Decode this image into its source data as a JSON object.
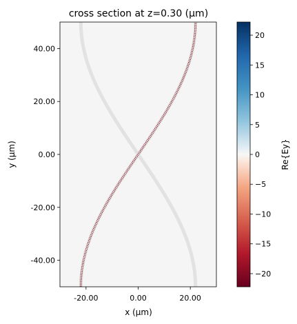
{
  "chart_data": {
    "type": "heatmap",
    "title": "cross section at z=0.30 (μm)",
    "xlabel": "x (μm)",
    "ylabel": "y (μm)",
    "xlim": [
      -30,
      30
    ],
    "ylim": [
      -50,
      50
    ],
    "x_ticks": [
      {
        "value": -20,
        "label": "-20.00"
      },
      {
        "value": 0,
        "label": "0.00"
      },
      {
        "value": 20,
        "label": "20.00"
      }
    ],
    "y_ticks": [
      {
        "value": 40,
        "label": "40.00"
      },
      {
        "value": 20,
        "label": "20.00"
      },
      {
        "value": 0,
        "label": "0.00"
      },
      {
        "value": -20,
        "label": "-20.00"
      },
      {
        "value": -40,
        "label": "-40.00"
      }
    ],
    "colorbar": {
      "label": "Re{Ey}",
      "colormap": "RdBu",
      "range": [
        -22.2,
        22.2
      ],
      "ticks": [
        20,
        15,
        10,
        5,
        0,
        -5,
        -10,
        -15,
        -20
      ],
      "tick_labels": [
        "20",
        "15",
        "10",
        "5",
        "0",
        "−5",
        "−10",
        "−15",
        "−20"
      ]
    },
    "structure": {
      "shape": "two S-bend waveguides crossing at origin",
      "color": "#e2e2e2",
      "background": "#f5f5f5",
      "end_x": 22,
      "center": [
        0,
        0
      ]
    },
    "field_mode": {
      "path": "from (-22,-50) to (22,50) through origin",
      "colors": {
        "negative": "#67001f",
        "positive": "#fbe3d6"
      }
    }
  }
}
